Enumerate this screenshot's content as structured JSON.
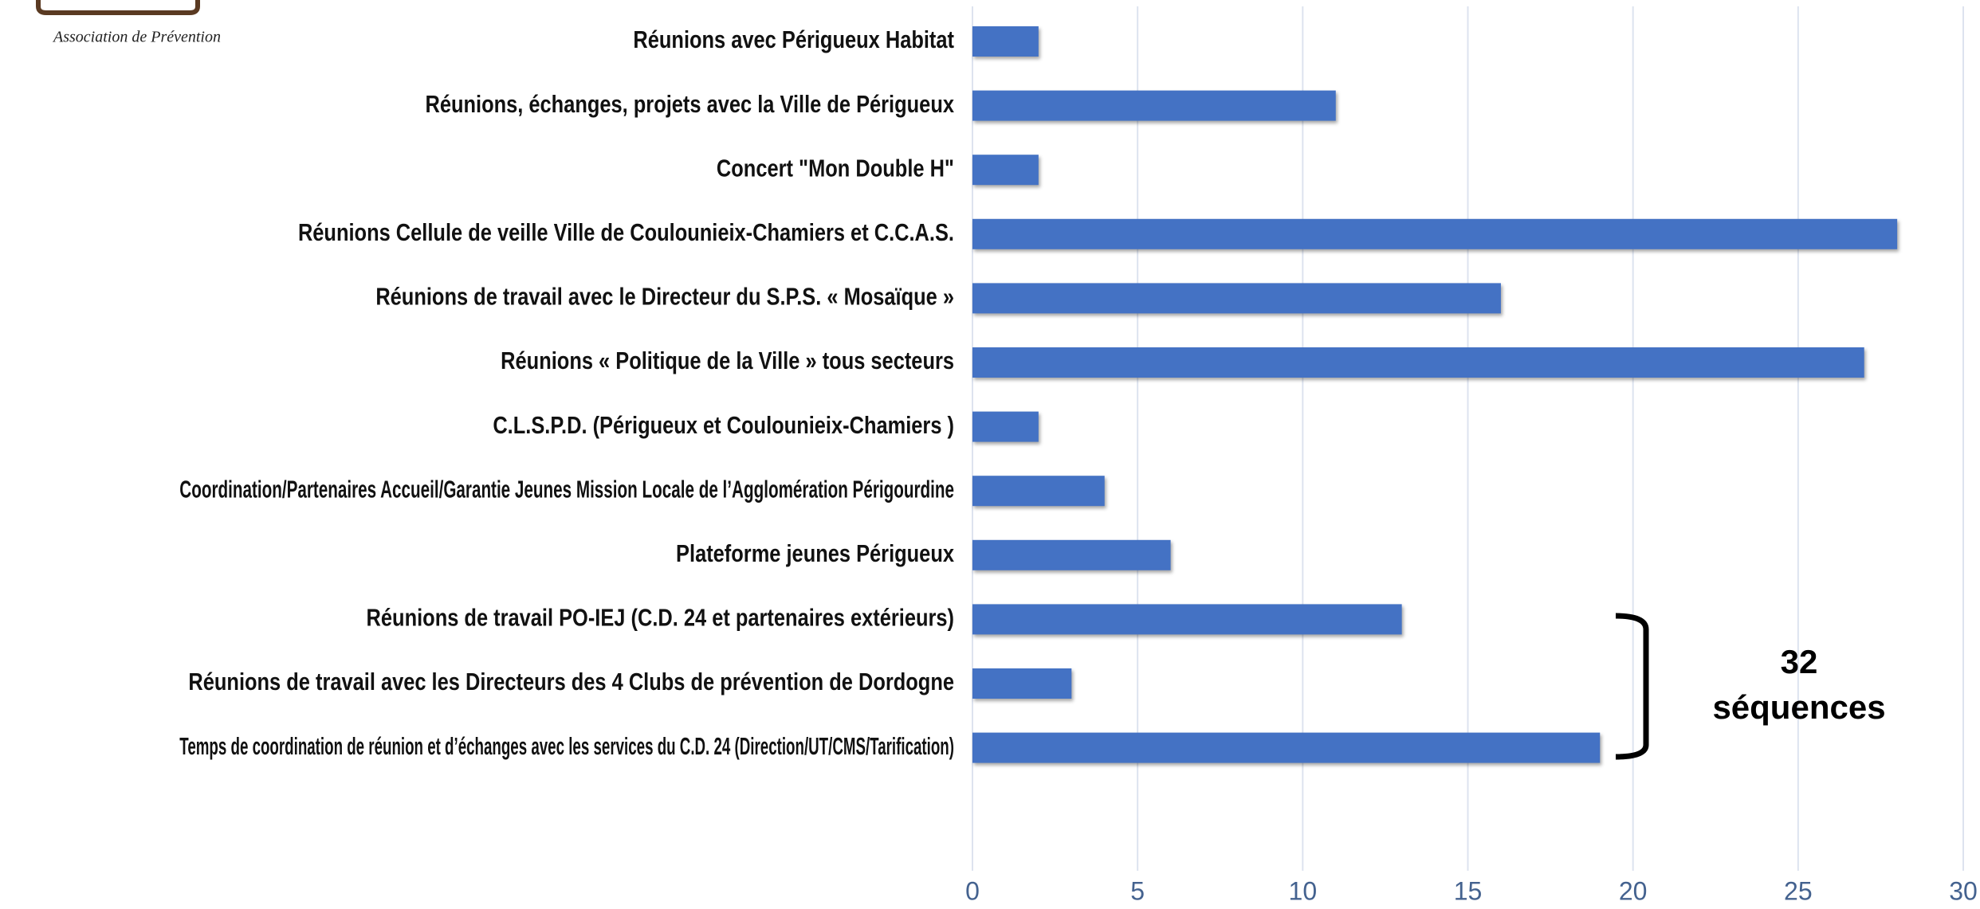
{
  "logo_text": "Association de Prévention",
  "chart_data": {
    "type": "bar",
    "orientation": "horizontal",
    "categories": [
      "Réunions avec Périgueux Habitat",
      "Réunions, échanges, projets avec la Ville de Périgueux",
      "Concert \"Mon Double H\"",
      "Réunions Cellule de veille Ville de Coulounieix-Chamiers et C.C.A.S.",
      "Réunions de travail avec le Directeur du S.P.S. « Mosaïque »",
      "Réunions « Politique de la Ville » tous secteurs",
      "C.L.S.P.D. (Périgueux et Coulounieix-Chamiers )",
      "Coordination/Partenaires Accueil/Garantie Jeunes Mission Locale de l’Agglomération Périgourdine",
      "Plateforme jeunes Périgueux",
      "Réunions de travail PO-IEJ (C.D. 24 et partenaires extérieurs)",
      "Réunions de travail avec les Directeurs des 4 Clubs de prévention de Dordogne",
      "Temps de coordination de réunion et d’échanges avec les services du C.D. 24 (Direction/UT/CMS/Tarification)"
    ],
    "values": [
      2,
      11,
      2,
      28,
      16,
      27,
      2,
      4,
      6,
      13,
      3,
      19
    ],
    "color": "#4472c4",
    "xlim": [
      0,
      30
    ],
    "xticks": [
      0,
      5,
      10,
      15,
      20,
      25,
      30
    ],
    "grid": true,
    "annotation": [
      "32",
      "séquences"
    ]
  }
}
